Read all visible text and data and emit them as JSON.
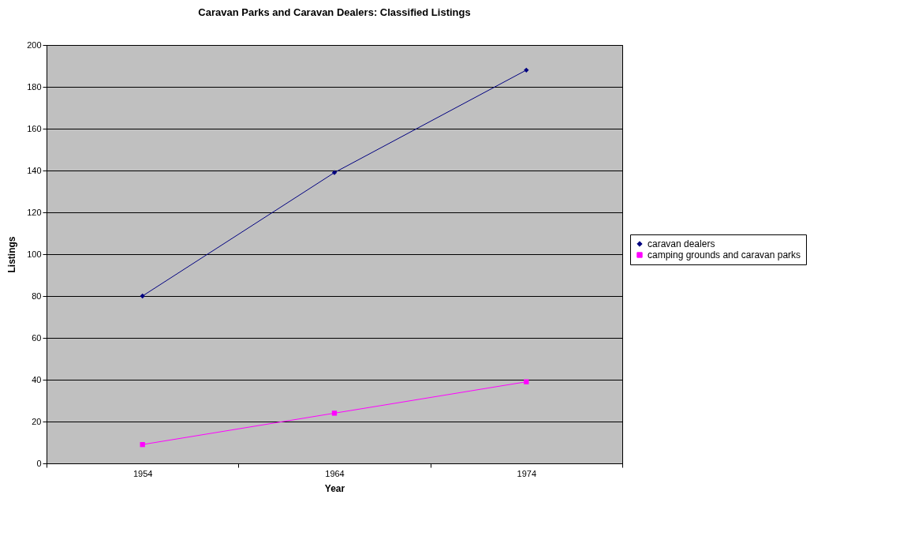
{
  "chart_data": {
    "type": "line",
    "title": "Caravan Parks and Caravan Dealers: Classified Listings",
    "xlabel": "Year",
    "ylabel": "Listings",
    "categories": [
      "1954",
      "1964",
      "1974"
    ],
    "series": [
      {
        "name": "caravan dealers",
        "color": "#000080",
        "marker": "diamond",
        "values": [
          80,
          139,
          188
        ]
      },
      {
        "name": "camping grounds and caravan parks",
        "color": "#ff00ff",
        "marker": "square",
        "values": [
          9,
          24,
          39
        ]
      }
    ],
    "ylim": [
      0,
      200
    ],
    "yticks": [
      0,
      20,
      40,
      60,
      80,
      100,
      120,
      140,
      160,
      180,
      200
    ],
    "grid": "y",
    "legend": "right"
  }
}
